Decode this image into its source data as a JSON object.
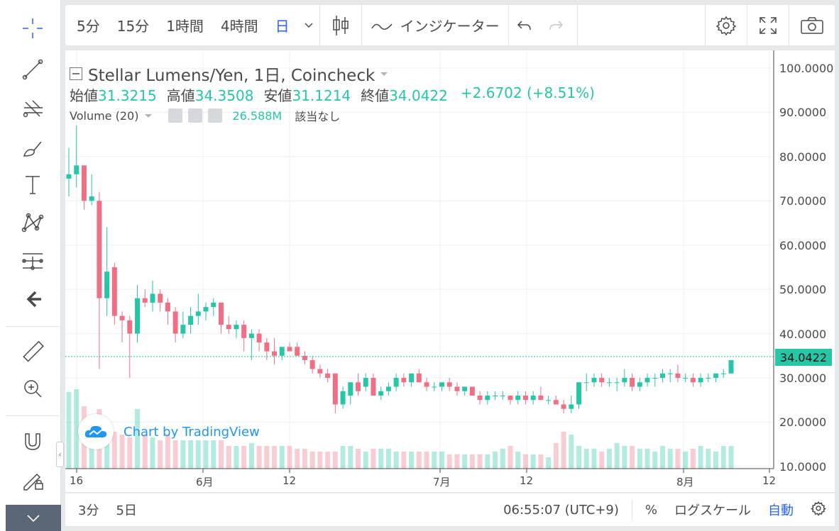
{
  "toolbar": {
    "intervals": [
      {
        "label": "5分",
        "active": false
      },
      {
        "label": "15分",
        "active": false
      },
      {
        "label": "1時間",
        "active": false
      },
      {
        "label": "4時間",
        "active": false
      },
      {
        "label": "日",
        "active": true
      }
    ],
    "indicators_label": "インジケーター"
  },
  "legend": {
    "title": "Stellar Lumens/Yen, 1日, Coincheck",
    "open_label": "始値",
    "open_value": "31.3215",
    "high_label": "高値",
    "high_value": "34.3508",
    "low_label": "安値",
    "low_value": "31.1214",
    "close_label": "終値",
    "close_value": "34.0422",
    "change": "+2.6702 (+8.51%)",
    "volume_label": "Volume (20)",
    "volume_value": "26.588M",
    "volume_na": "該当なし"
  },
  "watermark": "Chart by TradingView",
  "bottom": {
    "ranges": [
      "3分",
      "5日"
    ],
    "time": "06:55:07 (UTC+9)",
    "percent": "%",
    "log_label": "ログスケール",
    "auto_label": "自動"
  },
  "colors": {
    "up": "#26c6a6",
    "down": "#ef6f84",
    "accent": "#2962ff"
  },
  "chart_data": {
    "type": "candlestick",
    "title": "Stellar Lumens/Yen, 1日, Coincheck",
    "price_ticks": [
      "100.0000",
      "90.0000",
      "80.0000",
      "70.0000",
      "60.0000",
      "50.0000",
      "40.0000",
      "30.0000",
      "20.0000",
      "10.0000"
    ],
    "time_ticks": [
      "16",
      "6月",
      "12",
      "7月",
      "12",
      "8月",
      "12"
    ],
    "current_price": "34.0422",
    "ylim": [
      9.5,
      104
    ],
    "candles": [
      [
        75,
        82,
        71,
        76
      ],
      [
        76,
        87,
        73,
        78
      ],
      [
        78,
        78,
        68,
        70
      ],
      [
        70,
        76,
        69,
        71
      ],
      [
        70,
        72,
        32,
        48
      ],
      [
        48,
        64,
        44,
        54
      ],
      [
        55,
        56,
        42,
        44
      ],
      [
        44,
        45,
        38,
        43
      ],
      [
        43,
        44,
        30,
        40
      ],
      [
        40,
        51,
        38,
        48
      ],
      [
        48,
        50,
        46,
        47
      ],
      [
        47,
        52,
        45,
        49
      ],
      [
        49,
        50,
        45,
        47
      ],
      [
        47,
        48,
        42,
        45
      ],
      [
        45,
        46,
        38,
        40
      ],
      [
        40,
        45,
        39,
        42
      ],
      [
        42,
        46,
        40,
        44
      ],
      [
        44,
        49,
        42,
        45
      ],
      [
        45,
        47,
        43,
        46
      ],
      [
        46,
        48,
        44,
        47
      ],
      [
        47,
        47,
        40,
        42
      ],
      [
        42,
        44,
        40,
        41
      ],
      [
        41,
        43,
        39,
        42
      ],
      [
        42,
        43,
        36,
        39
      ],
      [
        39,
        41,
        34,
        40
      ],
      [
        40,
        41,
        36,
        38
      ],
      [
        38,
        39,
        34,
        36
      ],
      [
        36,
        39,
        33,
        35
      ],
      [
        35,
        37,
        34,
        37
      ],
      [
        37,
        38,
        36,
        36
      ],
      [
        37,
        38,
        35,
        35
      ],
      [
        35,
        36,
        33,
        34
      ],
      [
        34,
        35,
        31,
        32
      ],
      [
        32,
        33,
        30,
        31
      ],
      [
        31,
        32,
        29,
        30
      ],
      [
        31,
        31,
        22,
        24
      ],
      [
        24,
        28,
        23,
        27
      ],
      [
        26,
        29,
        24,
        29
      ],
      [
        29,
        31,
        26,
        27
      ],
      [
        28,
        31,
        27,
        30
      ],
      [
        30,
        31,
        26,
        26
      ],
      [
        26,
        28,
        25,
        27
      ],
      [
        27,
        29,
        26,
        28
      ],
      [
        28,
        31,
        27,
        30
      ],
      [
        30,
        31,
        28,
        29
      ],
      [
        29,
        31,
        28,
        31
      ],
      [
        31,
        32,
        29,
        29
      ],
      [
        29,
        30,
        27,
        28
      ],
      [
        28,
        29,
        27,
        28
      ],
      [
        28,
        29,
        27,
        29
      ],
      [
        29,
        30,
        27,
        28
      ],
      [
        28,
        29,
        26,
        27
      ],
      [
        27,
        28,
        26,
        28
      ],
      [
        28,
        28,
        26,
        26
      ],
      [
        26,
        27,
        24,
        25
      ],
      [
        25,
        27,
        24,
        26
      ],
      [
        26,
        27,
        25,
        26
      ],
      [
        26,
        27,
        25,
        26
      ],
      [
        26,
        26,
        24,
        25
      ],
      [
        25,
        27,
        24,
        26
      ],
      [
        26,
        27,
        24,
        25
      ],
      [
        25,
        27,
        24,
        26
      ],
      [
        26,
        28,
        25,
        25
      ],
      [
        25,
        26,
        24,
        25
      ],
      [
        25,
        26,
        24,
        24
      ],
      [
        24,
        25,
        22,
        23
      ],
      [
        23,
        26,
        22,
        24
      ],
      [
        24,
        29,
        23,
        29
      ],
      [
        29,
        31,
        27,
        29
      ],
      [
        29,
        31,
        28,
        30
      ],
      [
        30,
        31,
        28,
        29
      ],
      [
        29,
        30,
        28,
        29
      ],
      [
        29,
        30,
        27,
        29
      ],
      [
        29,
        32,
        28,
        30
      ],
      [
        30,
        31,
        27,
        28
      ],
      [
        28,
        30,
        27,
        29
      ],
      [
        29,
        31,
        28,
        30
      ],
      [
        30,
        31,
        28,
        30
      ],
      [
        30,
        32,
        29,
        31
      ],
      [
        31,
        32,
        29,
        31
      ],
      [
        31,
        33,
        29,
        30
      ],
      [
        30,
        31,
        29,
        30
      ],
      [
        30,
        31,
        28,
        29
      ],
      [
        29,
        31,
        28,
        30
      ],
      [
        30,
        31,
        29,
        30
      ],
      [
        30,
        31,
        29,
        31
      ],
      [
        31,
        32,
        30,
        31
      ],
      [
        31,
        34,
        31,
        34
      ]
    ],
    "volume": [
      27,
      28,
      22,
      12,
      21,
      16,
      13,
      12,
      11,
      21,
      12,
      11,
      10,
      12,
      10,
      10,
      10,
      10,
      10,
      10,
      10,
      8,
      8,
      8,
      9,
      8,
      8,
      8,
      8,
      8,
      7,
      7,
      6,
      6,
      6,
      6,
      8,
      8,
      7,
      6,
      7,
      7,
      7,
      6,
      6,
      6,
      6,
      6,
      6,
      6,
      5,
      5,
      5,
      5,
      5,
      5,
      6,
      7,
      8,
      6,
      5,
      5,
      5,
      4,
      9,
      13,
      12,
      8,
      7,
      7,
      6,
      7,
      9,
      8,
      8,
      7,
      7,
      6,
      8,
      7,
      7,
      6,
      7,
      8,
      7,
      6,
      8,
      8
    ]
  }
}
